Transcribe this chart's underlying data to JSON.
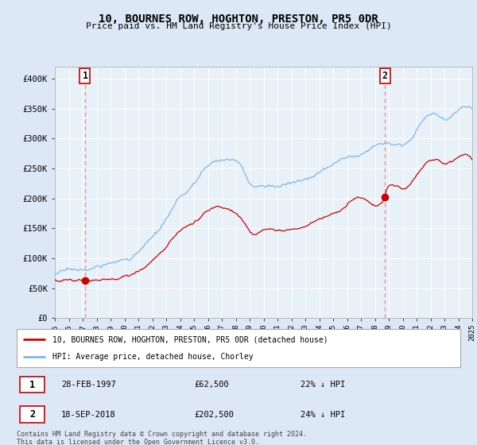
{
  "title": "10, BOURNES ROW, HOGHTON, PRESTON, PR5 0DR",
  "subtitle": "Price paid vs. HM Land Registry's House Price Index (HPI)",
  "hpi_label": "HPI: Average price, detached house, Chorley",
  "property_label": "10, BOURNES ROW, HOGHTON, PRESTON, PR5 0DR (detached house)",
  "footnote": "Contains HM Land Registry data © Crown copyright and database right 2024.\nThis data is licensed under the Open Government Licence v3.0.",
  "transaction1_date": "28-FEB-1997",
  "transaction1_price": 62500,
  "transaction1_hpi_diff": "22% ↓ HPI",
  "transaction2_date": "18-SEP-2018",
  "transaction2_price": 202500,
  "transaction2_hpi_diff": "24% ↓ HPI",
  "hpi_color": "#7ab8e8",
  "property_color": "#cc0000",
  "dashed_line_color": "#e09090",
  "background_color": "#dce8f5",
  "plot_bg_color": "#e8f0f8",
  "ylim": [
    0,
    420000
  ],
  "yticks": [
    0,
    50000,
    100000,
    150000,
    200000,
    250000,
    300000,
    350000,
    400000
  ],
  "ytick_labels": [
    "£0",
    "£50K",
    "£100K",
    "£150K",
    "£200K",
    "£250K",
    "£300K",
    "£350K",
    "£400K"
  ],
  "year_start": 1995,
  "year_end": 2025,
  "transaction1_year": 1997.17,
  "transaction2_year": 2018.72
}
